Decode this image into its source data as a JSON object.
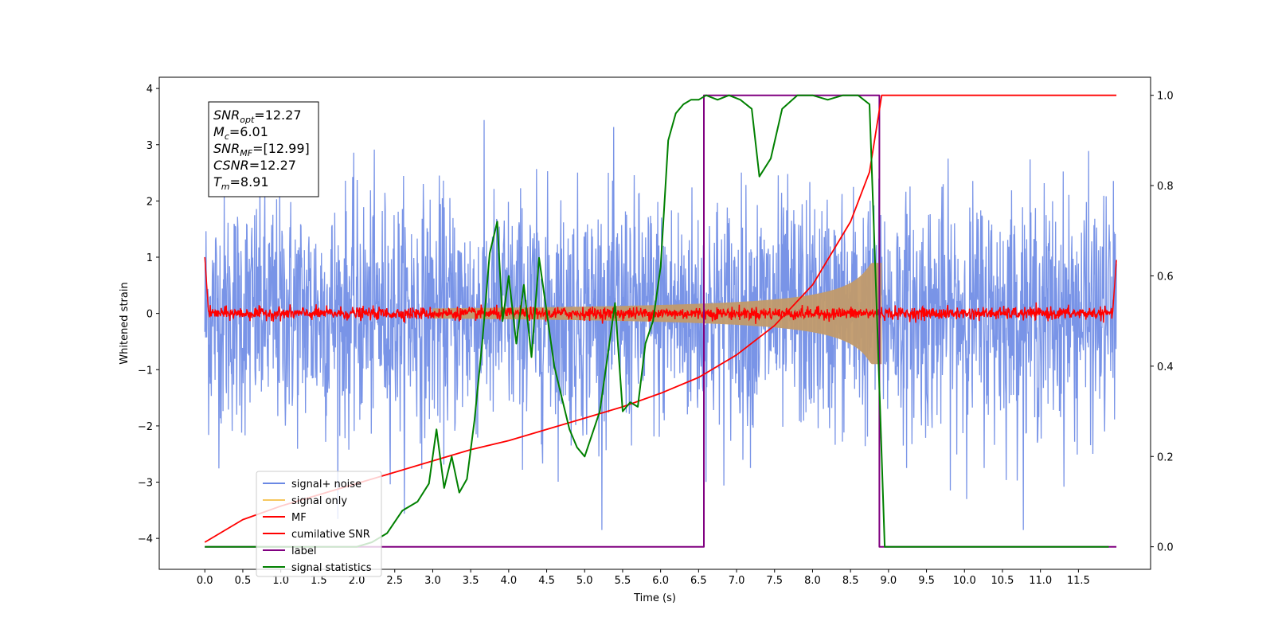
{
  "chart_data": {
    "type": "line",
    "xlabel": "Time (s)",
    "ylabel": "Whitened strain",
    "xlim": [
      -0.6,
      12.45
    ],
    "ylim": [
      -4.55,
      4.2
    ],
    "ylim_right": [
      -0.05,
      1.04
    ],
    "x_ticks": [
      "0.0",
      "0.5",
      "1.0",
      "1.5",
      "2.0",
      "2.5",
      "3.0",
      "3.5",
      "4.0",
      "4.5",
      "5.0",
      "5.5",
      "6.0",
      "6.5",
      "7.0",
      "7.5",
      "8.0",
      "8.5",
      "9.0",
      "9.5",
      "10.0",
      "10.5",
      "11.0",
      "11.5"
    ],
    "y_ticks_left": [
      "−4",
      "−3",
      "−2",
      "−1",
      "0",
      "1",
      "2",
      "3",
      "4"
    ],
    "y_ticks_right": [
      "0.0",
      "0.2",
      "0.4",
      "0.6",
      "0.8",
      "1.0"
    ],
    "info_box": [
      {
        "sym": "SNR",
        "sub": "opt",
        "val": "=12.27"
      },
      {
        "sym": "M",
        "sub": "c",
        "val": "=6.01"
      },
      {
        "sym": "SNR",
        "sub": "MF",
        "val": "=[12.99]"
      },
      {
        "sym": "CSNR",
        "sub": "",
        "val": "=12.27"
      },
      {
        "sym": "T",
        "sub": "m",
        "val": "=8.91"
      }
    ],
    "legend_position": "lower-left",
    "series": [
      {
        "name": "signal+ noise",
        "color": "#6a88e4",
        "axis": "left",
        "description": "whitened noise, amplitude ~±1.5 sigma, peaks to ±3.8 over 0-12 s"
      },
      {
        "name": "signal only",
        "color": "#f6c85f",
        "axis": "left",
        "description": "chirp envelope growing to ~0.9 at t=8.91 s"
      },
      {
        "name": "MF",
        "color": "#ff0000",
        "axis": "left",
        "description": "matched filter output ~0 ±0.15"
      },
      {
        "name": "cumilative SNR",
        "color": "#ff0000",
        "axis": "right",
        "x": [
          0.0,
          0.5,
          1.0,
          1.5,
          2.0,
          2.5,
          3.0,
          3.5,
          4.0,
          4.5,
          5.0,
          5.5,
          6.0,
          6.5,
          7.0,
          7.5,
          8.0,
          8.5,
          8.75,
          8.91,
          12.0
        ],
        "y": [
          0.01,
          0.06,
          0.09,
          0.115,
          0.14,
          0.165,
          0.19,
          0.215,
          0.235,
          0.26,
          0.285,
          0.31,
          0.34,
          0.375,
          0.425,
          0.49,
          0.58,
          0.72,
          0.83,
          1.0,
          1.0
        ]
      },
      {
        "name": "label",
        "color": "#800080",
        "axis": "right",
        "x": [
          0.0,
          6.57,
          6.57,
          8.88,
          8.88,
          12.0
        ],
        "y": [
          0.0,
          0.0,
          1.0,
          1.0,
          0.0,
          0.0
        ]
      },
      {
        "name": "signal statistics",
        "color": "#008000",
        "axis": "right",
        "x": [
          0.0,
          0.5,
          1.0,
          1.5,
          2.0,
          2.2,
          2.4,
          2.6,
          2.8,
          2.95,
          3.05,
          3.15,
          3.25,
          3.35,
          3.45,
          3.55,
          3.65,
          3.75,
          3.85,
          3.92,
          4.0,
          4.1,
          4.2,
          4.3,
          4.4,
          4.5,
          4.6,
          4.7,
          4.8,
          4.9,
          5.0,
          5.1,
          5.2,
          5.3,
          5.4,
          5.5,
          5.6,
          5.7,
          5.8,
          5.9,
          6.0,
          6.1,
          6.2,
          6.3,
          6.4,
          6.5,
          6.6,
          6.75,
          6.9,
          7.05,
          7.2,
          7.3,
          7.45,
          7.6,
          7.8,
          8.0,
          8.2,
          8.4,
          8.6,
          8.75,
          8.85,
          8.95,
          9.5,
          10.0,
          11.0,
          11.9
        ],
        "y": [
          0.0,
          0.0,
          0.0,
          0.0,
          0.0,
          0.01,
          0.03,
          0.08,
          0.1,
          0.14,
          0.26,
          0.13,
          0.2,
          0.12,
          0.15,
          0.28,
          0.45,
          0.65,
          0.72,
          0.5,
          0.6,
          0.45,
          0.58,
          0.42,
          0.64,
          0.52,
          0.4,
          0.33,
          0.26,
          0.22,
          0.2,
          0.25,
          0.3,
          0.42,
          0.54,
          0.3,
          0.32,
          0.31,
          0.45,
          0.5,
          0.62,
          0.9,
          0.96,
          0.98,
          0.99,
          0.99,
          1.0,
          0.99,
          1.0,
          0.99,
          0.97,
          0.82,
          0.86,
          0.97,
          1.0,
          1.0,
          0.99,
          1.0,
          1.0,
          0.98,
          0.5,
          0.0,
          0.0,
          0.0,
          0.0,
          0.0
        ]
      }
    ]
  }
}
